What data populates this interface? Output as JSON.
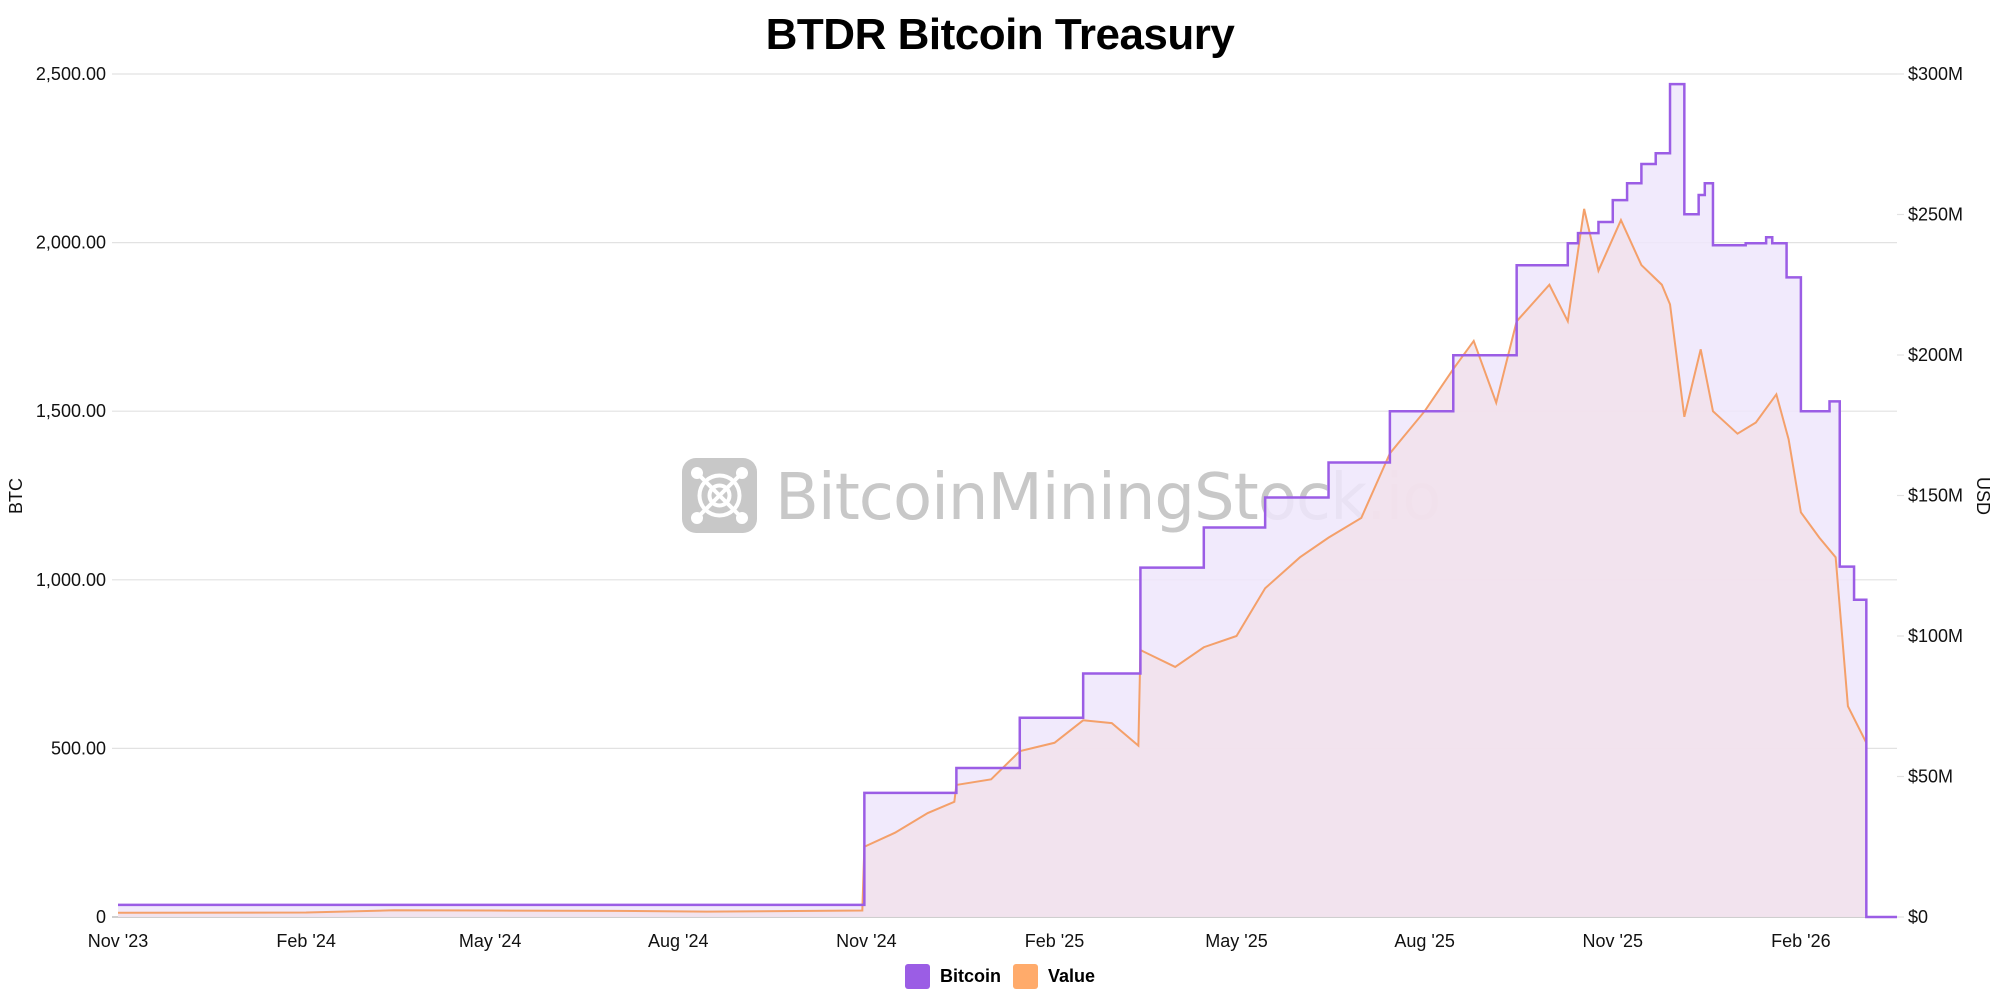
{
  "title": "BTDR Bitcoin Treasury",
  "watermark": "BitcoinMiningStock.io",
  "legend": [
    {
      "label": "Bitcoin",
      "color": "#9b5de5"
    },
    {
      "label": "Value",
      "color": "#ffab6b"
    }
  ],
  "colors": {
    "bitcoin_line": "#9b5de5",
    "bitcoin_fill": "#efe6fb",
    "value_line": "#f4a06a",
    "value_fill": "#f3e1ea",
    "grid": "#e2e2e2",
    "watermark": "#c8c8c8"
  },
  "chart_data": {
    "type": "line",
    "title": "BTDR Bitcoin Treasury",
    "xlabel": "",
    "ylabel": "BTC",
    "ylabel_right": "USD",
    "ylim": [
      0,
      2500
    ],
    "ylim_right": [
      0,
      300000000
    ],
    "grid": true,
    "legend_position": "bottom",
    "x_ticks": [
      "Nov '23",
      "Feb '24",
      "May '24",
      "Aug '24",
      "Nov '24",
      "Feb '25",
      "May '25",
      "Aug '25",
      "Nov '25",
      "Feb '26"
    ],
    "y_ticks_left": [
      "0",
      "500.00",
      "1,000.00",
      "1,500.00",
      "2,000.00",
      "2,500.00"
    ],
    "y_ticks_right": [
      "$0",
      "$50M",
      "$100M",
      "$150M",
      "$200M",
      "$250M",
      "$300M"
    ],
    "series": [
      {
        "name": "Bitcoin",
        "axis": "left",
        "step": true,
        "points": [
          [
            "2023-11-01",
            36
          ],
          [
            "2024-10-31",
            368
          ],
          [
            "2024-12-15",
            442
          ],
          [
            "2025-01-15",
            591
          ],
          [
            "2025-02-15",
            722
          ],
          [
            "2025-03-15",
            1036
          ],
          [
            "2025-04-15",
            1155
          ],
          [
            "2025-05-15",
            1244
          ],
          [
            "2025-06-15",
            1348
          ],
          [
            "2025-07-15",
            1500
          ],
          [
            "2025-08-15",
            1666
          ],
          [
            "2025-09-15",
            1933
          ],
          [
            "2025-10-10",
            1998
          ],
          [
            "2025-10-15",
            2028
          ],
          [
            "2025-10-25",
            2061
          ],
          [
            "2025-11-01",
            2126
          ],
          [
            "2025-11-08",
            2176
          ],
          [
            "2025-11-15",
            2233
          ],
          [
            "2025-11-22",
            2265
          ],
          [
            "2025-11-29",
            2470
          ],
          [
            "2025-12-06",
            2084
          ],
          [
            "2025-12-13",
            2141
          ],
          [
            "2025-12-16",
            2176
          ],
          [
            "2025-12-20",
            1992
          ],
          [
            "2026-01-05",
            1998
          ],
          [
            "2026-01-15",
            2016
          ],
          [
            "2026-01-18",
            1998
          ],
          [
            "2026-01-25",
            1897
          ],
          [
            "2026-02-01",
            1500
          ],
          [
            "2026-02-15",
            1529
          ],
          [
            "2026-02-20",
            1039
          ],
          [
            "2026-02-27",
            941
          ],
          [
            "2026-03-05",
            0
          ],
          [
            "2026-03-20",
            0
          ]
        ]
      },
      {
        "name": "Value",
        "axis": "right",
        "unit": "USD",
        "points": [
          [
            "2023-11-01",
            1500000
          ],
          [
            "2024-02-01",
            1600000
          ],
          [
            "2024-03-15",
            2400000
          ],
          [
            "2024-05-01",
            2300000
          ],
          [
            "2024-07-01",
            2200000
          ],
          [
            "2024-08-15",
            1900000
          ],
          [
            "2024-10-30",
            2300000
          ],
          [
            "2024-10-31",
            25000000
          ],
          [
            "2024-11-15",
            30000000
          ],
          [
            "2024-12-01",
            37000000
          ],
          [
            "2024-12-14",
            41000000
          ],
          [
            "2024-12-15",
            47000000
          ],
          [
            "2025-01-01",
            49000000
          ],
          [
            "2025-01-15",
            59000000
          ],
          [
            "2025-02-01",
            62000000
          ],
          [
            "2025-02-15",
            70000000
          ],
          [
            "2025-03-01",
            69000000
          ],
          [
            "2025-03-14",
            61000000
          ],
          [
            "2025-03-15",
            95000000
          ],
          [
            "2025-04-01",
            89000000
          ],
          [
            "2025-04-15",
            96000000
          ],
          [
            "2025-05-01",
            100000000
          ],
          [
            "2025-05-15",
            117000000
          ],
          [
            "2025-06-01",
            128000000
          ],
          [
            "2025-06-15",
            135000000
          ],
          [
            "2025-07-01",
            142000000
          ],
          [
            "2025-07-15",
            165000000
          ],
          [
            "2025-08-01",
            180000000
          ],
          [
            "2025-08-15",
            195000000
          ],
          [
            "2025-08-25",
            205000000
          ],
          [
            "2025-09-05",
            183000000
          ],
          [
            "2025-09-15",
            212000000
          ],
          [
            "2025-10-01",
            225000000
          ],
          [
            "2025-10-10",
            212000000
          ],
          [
            "2025-10-18",
            252000000
          ],
          [
            "2025-10-25",
            230000000
          ],
          [
            "2025-11-05",
            248000000
          ],
          [
            "2025-11-15",
            232000000
          ],
          [
            "2025-11-25",
            225000000
          ],
          [
            "2025-11-29",
            218000000
          ],
          [
            "2025-12-06",
            178000000
          ],
          [
            "2025-12-14",
            202000000
          ],
          [
            "2025-12-20",
            180000000
          ],
          [
            "2026-01-01",
            172000000
          ],
          [
            "2026-01-10",
            176000000
          ],
          [
            "2026-01-20",
            186000000
          ],
          [
            "2026-01-26",
            170000000
          ],
          [
            "2026-02-01",
            144000000
          ],
          [
            "2026-02-10",
            135000000
          ],
          [
            "2026-02-18",
            128000000
          ],
          [
            "2026-02-24",
            75000000
          ],
          [
            "2026-03-05",
            62000000
          ]
        ]
      }
    ]
  }
}
